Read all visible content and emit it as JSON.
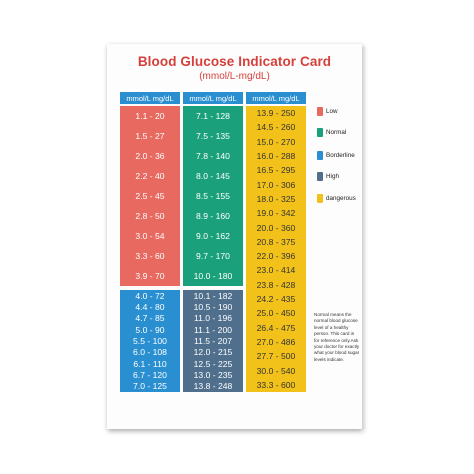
{
  "title": "Blood Glucose Indicator Card",
  "subtitle": "(mmol/L-mg/dL)",
  "column_header": "mmol/L  mg/dL",
  "colors": {
    "low": "#e8695f",
    "normal": "#1aa17b",
    "borderline": "#2a8fd1",
    "high": "#4f6f8c",
    "dangerous": "#f2c21b"
  },
  "columns": [
    {
      "blocks": [
        {
          "color": "low",
          "rows": [
            "1.1  -  20",
            "1.5  -  27",
            "2.0  -  36",
            "2.2  -  40",
            "2.5  -  45",
            "2.8  -  50",
            "3.0  -  54",
            "3.3  -  60",
            "3.9  -  70"
          ]
        },
        {
          "color": "borderline",
          "rows": [
            "4.0  -  72",
            "4.4  -  80",
            "4.7  -  85",
            "5.0  -  90",
            "5.5  -  100",
            "6.0  -  108",
            "6.1  -  110",
            "6.7  -  120",
            "7.0  -  125"
          ]
        }
      ]
    },
    {
      "blocks": [
        {
          "color": "normal",
          "rows": [
            "7.1  -  128",
            "7.5  -  135",
            "7.8  -  140",
            "8.0  -  145",
            "8.5  -  155",
            "8.9  -  160",
            "9.0  -  162",
            "9.7  -  170",
            "10.0 -  180"
          ]
        },
        {
          "color": "high",
          "rows": [
            "10.1  -  182",
            "10.5  -  190",
            "11.0  -  196",
            "11.1  -  200",
            "11.5  -  207",
            "12.0  -  215",
            "12.5  -  225",
            "13.0  -  235",
            "13.8  -  248"
          ]
        }
      ]
    },
    {
      "blocks": [
        {
          "color": "dangerous",
          "rows": [
            "13.9  -  250",
            "14.5  -  260",
            "15.0  -  270",
            "16.0  -  288",
            "16.5  -  295",
            "17.0  -  306",
            "18.0  -  325",
            "19.0  -  342",
            "20.0  -  360",
            "20.8  -  375",
            "22.0  -  396",
            "23.0  -  414",
            "23.8  -  428",
            "24.2  -  435",
            "25.0  -  450",
            "26.4  -  475",
            "27.0  -  486",
            "27.7  -  500",
            "30.0  -  540",
            "33.3  -  600"
          ]
        }
      ]
    }
  ],
  "legend": [
    {
      "label": "Low",
      "color": "low",
      "icon": "low-swatch"
    },
    {
      "label": "Normal",
      "color": "normal",
      "icon": "normal-swatch"
    },
    {
      "label": "Borderline",
      "color": "borderline",
      "icon": "borderline-swatch"
    },
    {
      "label": "High",
      "color": "high",
      "icon": "high-swatch"
    },
    {
      "label": "dangerous",
      "color": "dangerous",
      "icon": "dangerous-swatch"
    }
  ],
  "note": "Normal means the normal blood glucose level of a healthy person. This card is for reference only.Ask your doctor for exactly what your blood sugar levels indicate."
}
